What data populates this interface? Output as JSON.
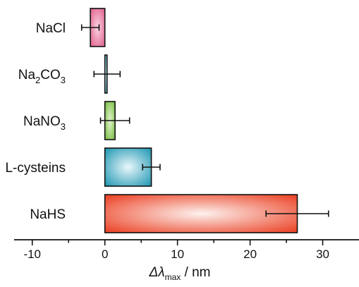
{
  "chart_data": {
    "type": "bar",
    "orientation": "horizontal",
    "categories": [
      "NaCl",
      "Na2CO3",
      "NaNO3",
      "L-cysteins",
      "NaHS"
    ],
    "category_labels": [
      {
        "main": "NaCl"
      },
      {
        "parts": [
          {
            "t": "Na",
            "sub": false
          },
          {
            "t": "2",
            "sub": true
          },
          {
            "t": "CO",
            "sub": false
          },
          {
            "t": "3",
            "sub": true
          }
        ]
      },
      {
        "parts": [
          {
            "t": "NaNO",
            "sub": false
          },
          {
            "t": "3",
            "sub": true
          }
        ]
      },
      {
        "main": "L-cysteins"
      },
      {
        "main": "NaHS"
      }
    ],
    "values": [
      -2.0,
      0.3,
      1.4,
      6.4,
      26.5
    ],
    "errors": [
      1.2,
      1.8,
      2.0,
      1.2,
      4.3
    ],
    "colors": [
      {
        "center": "#fbd3e3",
        "edge": "#e0638f"
      },
      {
        "center": "#d6f1f6",
        "edge": "#3fa8bd"
      },
      {
        "center": "#e3f4cd",
        "edge": "#79bd45"
      },
      {
        "center": "#eaf7fb",
        "edge": "#2a9cb6"
      },
      {
        "center": "#fdf2ef",
        "edge": "#ec4a2e"
      }
    ],
    "xlim": [
      -12.5,
      35
    ],
    "xticks": [
      -10,
      0,
      10,
      20,
      30
    ],
    "xlabel": {
      "main": "Δλ",
      "sub": "max",
      "rest": " / nm"
    },
    "grid": false,
    "legend": "none"
  }
}
